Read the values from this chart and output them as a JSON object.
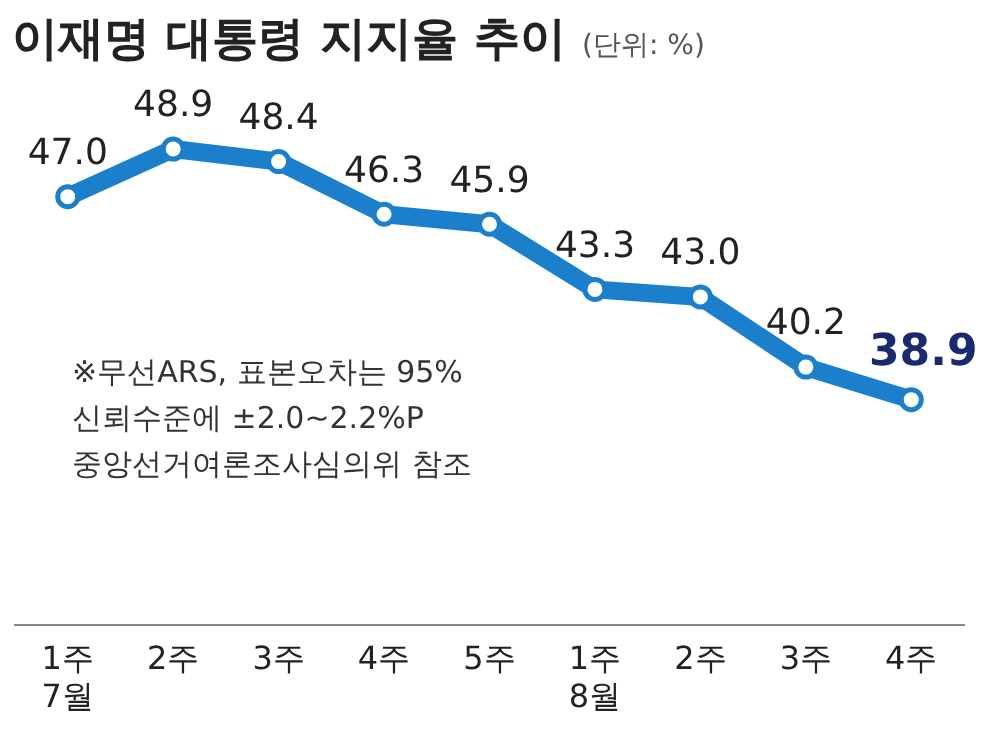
{
  "chart_data": {
    "type": "line",
    "title": "이재명 대통령 지지율 추이",
    "subtitle": "(단위: %)",
    "categories": [
      "1주\n7월",
      "2주",
      "3주",
      "4주",
      "5주",
      "1주\n8월",
      "2주",
      "3주",
      "4주"
    ],
    "series": [
      {
        "color": "#1c7fcc",
        "values": [
          47.0,
          48.9,
          48.4,
          46.3,
          45.9,
          43.3,
          43.0,
          40.2,
          38.9
        ],
        "value_labels": [
          "47.0",
          "48.9",
          "48.4",
          "46.3",
          "45.9",
          "43.3",
          "43.0",
          "40.2",
          "38.9"
        ]
      }
    ],
    "annotations": [
      "※무선ARS, 표본오차는 95%\n신뢰수준에 ±2.0~2.2%P\n중앙선거여론조사심의위 참조"
    ],
    "marker": "circle",
    "line_style": "solid",
    "grid": false,
    "legend": false
  }
}
